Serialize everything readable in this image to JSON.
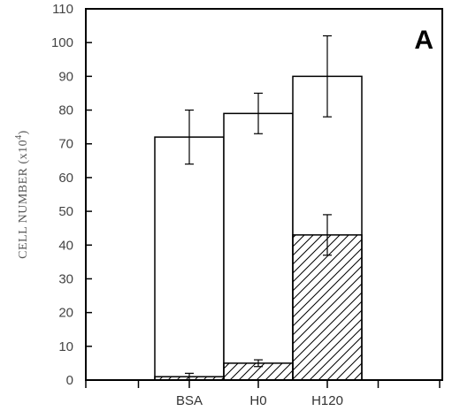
{
  "chart_data": {
    "type": "bar",
    "panel_label": "A",
    "ylabel_main": "CELL NUMBER (x10",
    "ylabel_exp": "4",
    "ylabel_close": ")",
    "xlabel": "",
    "ylim": [
      0,
      110
    ],
    "yticks": [
      "0",
      "10",
      "20",
      "30",
      "40",
      "50",
      "60",
      "70",
      "80",
      "90",
      "100",
      "110"
    ],
    "categories": [
      "BSA",
      "H0",
      "H120"
    ],
    "grid": false,
    "series": [
      {
        "values": [
          72,
          79,
          90
        ],
        "errors": [
          8,
          6,
          12
        ],
        "style": "open"
      },
      {
        "values": [
          1,
          5,
          43
        ],
        "errors": [
          1,
          1,
          6
        ],
        "style": "hatched"
      }
    ],
    "colors": {
      "axis": "#000000",
      "bar_fill": "#ffffff",
      "hatch": "#000000"
    }
  }
}
